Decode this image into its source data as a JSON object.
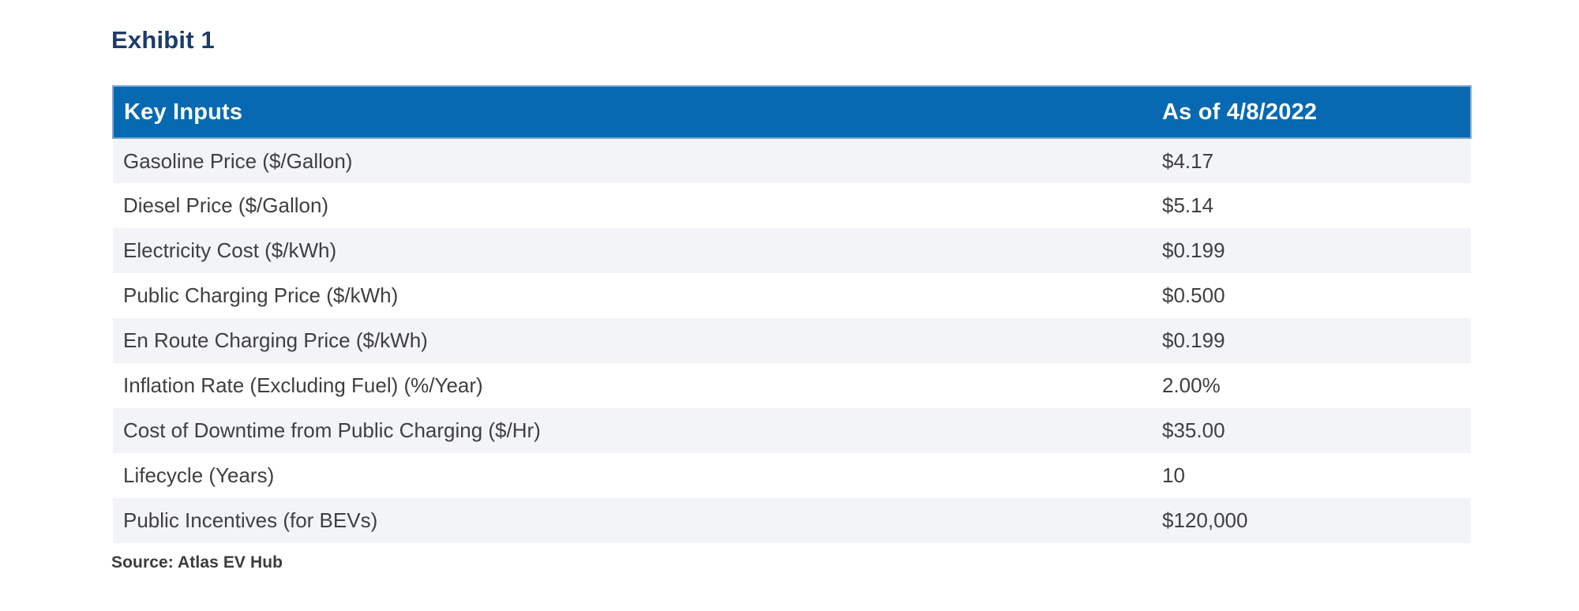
{
  "page": {
    "exhibit_label": "Exhibit 1",
    "source_note": "Source: Atlas EV Hub"
  },
  "table": {
    "header": {
      "col1": "Key Inputs",
      "col2": "As of 4/8/2022"
    },
    "rows": [
      {
        "label": "Gasoline Price ($/Gallon)",
        "value": "$4.17"
      },
      {
        "label": "Diesel Price ($/Gallon)",
        "value": "$5.14"
      },
      {
        "label": "Electricity Cost ($/kWh)",
        "value": "$0.199"
      },
      {
        "label": "Public Charging Price ($/kWh)",
        "value": "$0.500"
      },
      {
        "label": "En Route Charging Price ($/kWh)",
        "value": "$0.199"
      },
      {
        "label": "Inflation Rate (Excluding Fuel) (%/Year)",
        "value": "2.00%"
      },
      {
        "label": "Cost of Downtime from Public Charging ($/Hr)",
        "value": "$35.00"
      },
      {
        "label": "Lifecycle (Years)",
        "value": "10"
      },
      {
        "label": "Public Incentives (for BEVs)",
        "value": "$120,000"
      }
    ]
  },
  "colors": {
    "header_bg": "#0669b2",
    "header_border": "#7fa8d2",
    "header_text": "#ffffff",
    "stripe_bg": "#f2f4f8",
    "title_text": "#1c3c6b",
    "body_text": "#3f3f3f",
    "source_text": "#3b3b3b"
  }
}
